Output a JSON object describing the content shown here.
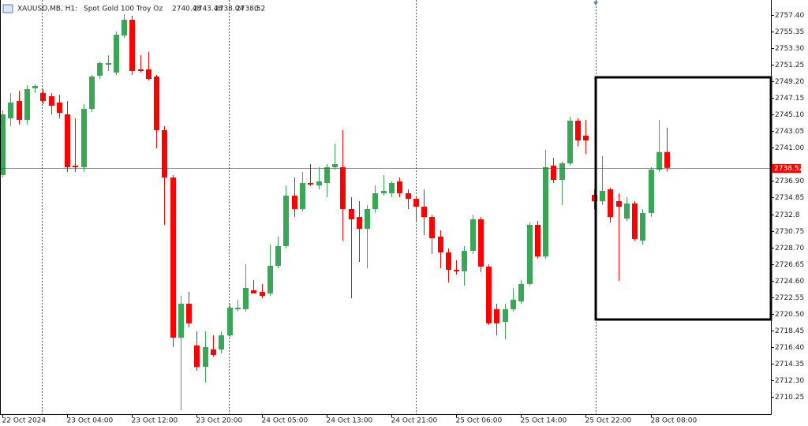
{
  "chart_data": {
    "type": "candlestick",
    "title": "XAUUSD.MB, H1:",
    "subtitle": "Spot Gold 100 Troy Oz",
    "info": "0",
    "up_color": "#3aa757",
    "down_color": "#ff0000",
    "bid_color": "#ff0000",
    "categories": [
      "22 Oct 2024",
      null,
      null,
      null,
      null,
      null,
      null,
      null,
      "23 Oct 04:00",
      null,
      null,
      null,
      null,
      null,
      null,
      null,
      "23 Oct 12:00",
      null,
      null,
      null,
      null,
      null,
      null,
      null,
      "23 Oct 20:00",
      null,
      null,
      null,
      null,
      null,
      null,
      null,
      "24 Oct 05:00",
      null,
      null,
      null,
      null,
      null,
      null,
      null,
      "24 Oct 13:00",
      null,
      null,
      null,
      null,
      null,
      null,
      null,
      "24 Oct 21:00",
      null,
      null,
      null,
      null,
      null,
      null,
      null,
      "25 Oct 06:00",
      null,
      null,
      null,
      null,
      null,
      null,
      null,
      "25 Oct 14:00",
      null,
      null,
      null,
      null,
      null,
      null,
      null,
      "25 Oct 22:00",
      null,
      null,
      null,
      null,
      null,
      null,
      null,
      "28 Oct 08:00",
      null,
      null
    ],
    "open": [
      2737.63,
      2744.64,
      2746.78,
      2744.45,
      2748.34,
      2747.76,
      2747.37,
      2746.59,
      2745.13,
      2738.8,
      2738.6,
      2745.81,
      2749.9,
      2751.26,
      2750.29,
      2754.87,
      2756.81,
      2750.68,
      2750.68,
      2749.8,
      2743.18,
      2737.33,
      2717.56,
      2721.75,
      2716.59,
      2713.96,
      2716.1,
      2716.1,
      2717.85,
      2721.07,
      2721.07,
      2723.41,
      2723.21,
      2723.02,
      2726.43,
      2728.86,
      2735.09,
      2733.44,
      2736.65,
      2736.36,
      2736.65,
      2738.6,
      2738.6,
      2733.44,
      2732.46,
      2731.0,
      2733.44,
      2735.39,
      2735.39,
      2736.85,
      2735.39,
      2734.7,
      2733.73,
      2732.46,
      2730.03,
      2728.08,
      2725.94,
      2725.74,
      2728.28,
      2732.17,
      2726.33,
      2721.07,
      2719.51,
      2721.07,
      2722.04,
      2724.19,
      2731.49,
      2727.59,
      2738.8,
      2737.04,
      2739.09,
      2744.35,
      2742.5,
      2735.19,
      2734.41,
      2735.87,
      2734.41,
      2732.27,
      2734.12,
      2729.54,
      2732.95,
      2738.31,
      2740.48
    ],
    "high": [
      2745.61,
      2747.76,
      2748.05,
      2748.73,
      2748.83,
      2748.24,
      2747.76,
      2747.56,
      2746.78,
      2744.64,
      2746.39,
      2750.0,
      2751.65,
      2752.43,
      2755.35,
      2757.5,
      2757.3,
      2752.43,
      2752.82,
      2750.0,
      2743.67,
      2737.63,
      2722.72,
      2723.21,
      2718.34,
      2718.34,
      2717.85,
      2718.34,
      2721.75,
      2722.24,
      2726.62,
      2724.67,
      2724.19,
      2729.06,
      2730.03,
      2736.36,
      2737.33,
      2738.02,
      2738.99,
      2738.6,
      2738.99,
      2741.52,
      2743.18,
      2734.9,
      2734.41,
      2733.93,
      2736.36,
      2737.63,
      2736.85,
      2737.33,
      2735.87,
      2735.09,
      2735.87,
      2732.76,
      2730.81,
      2728.57,
      2727.11,
      2728.86,
      2732.76,
      2732.46,
      2726.62,
      2721.75,
      2721.75,
      2723.7,
      2724.67,
      2731.78,
      2731.98,
      2740.74,
      2739.77,
      2739.28,
      2744.83,
      2744.64,
      2744.45,
      2735.87,
      2739.96,
      2736.07,
      2735.39,
      2734.9,
      2734.41,
      2733.44,
      2738.6,
      2744.45,
      2743.48
    ],
    "low": [
      2737.33,
      2743.67,
      2743.86,
      2743.86,
      2747.76,
      2746.39,
      2745.13,
      2744.64,
      2738.02,
      2738.02,
      2738.02,
      2745.42,
      2749.51,
      2750.48,
      2750.0,
      2754.57,
      2750.0,
      2750.29,
      2749.32,
      2740.94,
      2731.49,
      2716.39,
      2708.6,
      2718.83,
      2713.47,
      2712.01,
      2715.22,
      2715.61,
      2717.56,
      2720.78,
      2720.78,
      2723.02,
      2722.43,
      2722.72,
      2726.13,
      2728.57,
      2732.46,
      2733.15,
      2736.26,
      2735.87,
      2734.9,
      2738.31,
      2729.54,
      2722.43,
      2726.91,
      2726.13,
      2732.95,
      2735.09,
      2734.9,
      2734.9,
      2733.44,
      2731.98,
      2730.22,
      2727.89,
      2726.13,
      2724.38,
      2725.35,
      2723.99,
      2727.89,
      2725.65,
      2719.12,
      2717.85,
      2717.37,
      2720.78,
      2721.75,
      2723.99,
      2727.3,
      2727.3,
      2736.65,
      2733.93,
      2738.8,
      2741.23,
      2740.26,
      2733.44,
      2733.93,
      2731.78,
      2724.58,
      2731.98,
      2729.54,
      2729.06,
      2732.46,
      2738.02,
      2738.04
    ],
    "close": [
      2745.13,
      2746.59,
      2744.45,
      2748.24,
      2748.63,
      2746.78,
      2746.2,
      2745.32,
      2738.6,
      2738.6,
      2745.81,
      2749.8,
      2751.46,
      2751.46,
      2754.96,
      2756.81,
      2750.48,
      2750.48,
      2749.51,
      2743.18,
      2737.33,
      2717.56,
      2721.75,
      2719.32,
      2713.96,
      2716.39,
      2715.42,
      2717.85,
      2721.26,
      2721.26,
      2723.7,
      2723.02,
      2722.72,
      2726.43,
      2728.86,
      2735.09,
      2733.44,
      2736.65,
      2736.46,
      2736.85,
      2738.6,
      2738.99,
      2733.44,
      2732.17,
      2731.0,
      2733.44,
      2735.39,
      2735.68,
      2736.65,
      2735.39,
      2734.7,
      2733.73,
      2732.46,
      2729.83,
      2728.08,
      2725.94,
      2725.74,
      2728.28,
      2732.17,
      2726.33,
      2719.32,
      2719.32,
      2721.07,
      2722.24,
      2724.19,
      2731.49,
      2727.59,
      2738.6,
      2737.04,
      2739.09,
      2744.35,
      2741.91,
      2741.91,
      2734.41,
      2735.68,
      2732.46,
      2733.73,
      2734.12,
      2729.74,
      2732.95,
      2738.31,
      2740.48,
      2738.52
    ],
    "ylim": [
      2708.11,
      2759.25
    ],
    "yticks": [
      {
        "value": 2757.4,
        "label": "2757.40"
      },
      2755.35,
      {
        "value": 2753.3,
        "label": "2753.30"
      },
      2751.25,
      {
        "value": 2749.2,
        "label": "2749.20"
      },
      2747.15,
      {
        "value": 2745.1,
        "label": "2745.10"
      },
      2743.05,
      {
        "value": 2741,
        "label": "2741.00"
      },
      {
        "value": 2736.9,
        "label": "2736.90"
      },
      2734.85,
      2732.8,
      2730.75,
      {
        "value": 2728.7,
        "label": "2728.70"
      },
      2726.65,
      {
        "value": 2724.6,
        "label": "2724.60"
      },
      2722.55,
      {
        "value": 2720.5,
        "label": "2720.50"
      },
      2718.45,
      {
        "value": 2716.4,
        "label": "2716.40"
      },
      2714.35,
      {
        "value": 2712.3,
        "label": "2712.30"
      },
      2710.25
    ]
  }
}
